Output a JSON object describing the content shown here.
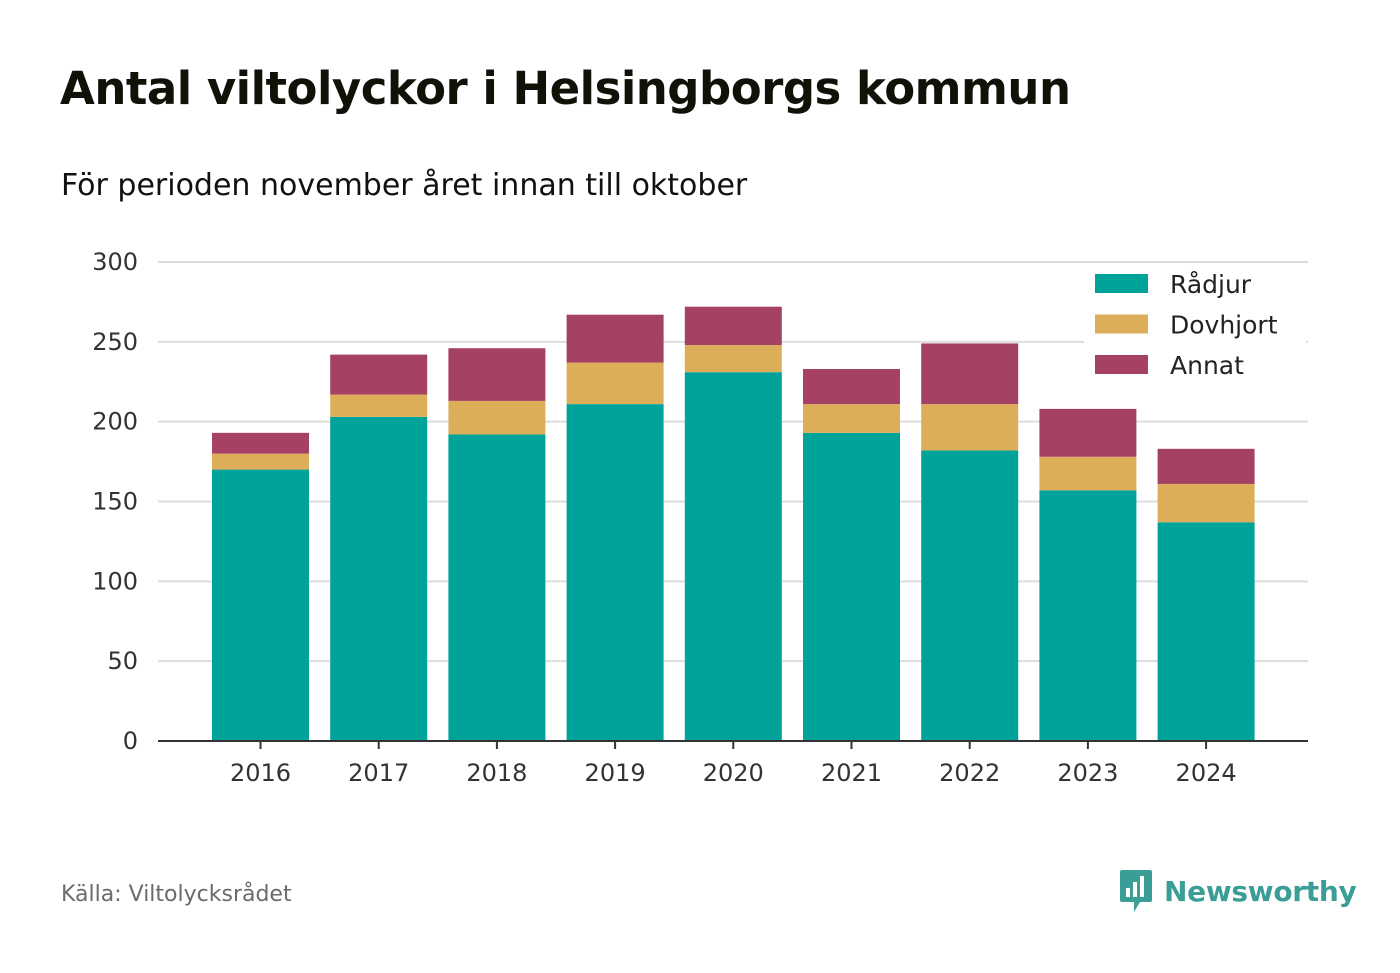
{
  "header": {
    "title": "Antal viltolyckor i Helsingborgs kommun",
    "subtitle": "För perioden november året innan till oktober"
  },
  "footer": {
    "source": "Källa: Viltolycksrådet",
    "brand": "Newsworthy",
    "brand_color": "#3a9e96"
  },
  "chart_data": {
    "type": "bar",
    "stacked": true,
    "categories": [
      "2016",
      "2017",
      "2018",
      "2019",
      "2020",
      "2021",
      "2022",
      "2023",
      "2024"
    ],
    "series": [
      {
        "name": "Rådjur",
        "color": "#00a39a",
        "values": [
          170,
          203,
          192,
          211,
          231,
          193,
          182,
          157,
          137
        ]
      },
      {
        "name": "Dovhjort",
        "color": "#dcae5a",
        "values": [
          10,
          14,
          21,
          26,
          17,
          18,
          29,
          21,
          24
        ]
      },
      {
        "name": "Annat",
        "color": "#a64166",
        "values": [
          13,
          25,
          33,
          30,
          24,
          22,
          38,
          30,
          22
        ]
      }
    ],
    "yticks": [
      "0",
      "50",
      "100",
      "150",
      "200",
      "250",
      "300"
    ],
    "ylim": [
      0,
      300
    ],
    "grid": true,
    "legend_position": "top-right",
    "title": "Antal viltolyckor i Helsingborgs kommun",
    "xlabel": "",
    "ylabel": ""
  }
}
